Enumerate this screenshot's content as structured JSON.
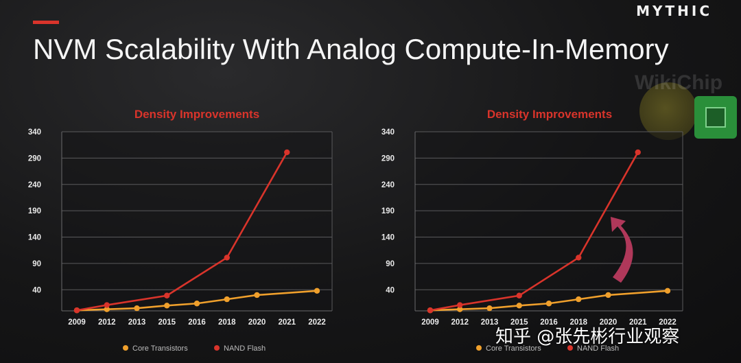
{
  "brand": "MYTHIC",
  "title": "NVM Scalability With Analog Compute-In-Memory",
  "logo_text": "WikiChip",
  "watermark": "知乎 @张先彬行业观察",
  "colors": {
    "accent": "#d9342b",
    "nand": "#d9342b",
    "core": "#f0a02c",
    "arrow": "#b0385a"
  },
  "chart_data": [
    {
      "type": "line",
      "title": "Density Improvements",
      "categories": [
        "2009",
        "2012",
        "2013",
        "2015",
        "2016",
        "2018",
        "2020",
        "2021",
        "2022"
      ],
      "yticks": [
        40,
        90,
        140,
        190,
        240,
        290,
        340
      ],
      "ylim": [
        0,
        340
      ],
      "grid": true,
      "legend": "bottom",
      "series": [
        {
          "name": "Core Transistors",
          "color": "#f0a02c",
          "values": [
            1,
            3,
            5,
            10,
            14,
            22,
            30,
            null,
            38
          ]
        },
        {
          "name": "NAND Flash",
          "color": "#d9342b",
          "values": [
            1,
            11,
            null,
            29,
            null,
            101,
            null,
            301,
            null
          ]
        }
      ]
    },
    {
      "type": "line",
      "title": "Density Improvements",
      "categories": [
        "2009",
        "2012",
        "2013",
        "2015",
        "2016",
        "2018",
        "2020",
        "2021",
        "2022"
      ],
      "yticks": [
        40,
        90,
        140,
        190,
        240,
        290,
        340
      ],
      "ylim": [
        0,
        340
      ],
      "grid": true,
      "legend": "bottom",
      "annotation": "curved-up-arrow",
      "series": [
        {
          "name": "Core Transistors",
          "color": "#f0a02c",
          "values": [
            1,
            3,
            5,
            10,
            14,
            22,
            30,
            null,
            38
          ]
        },
        {
          "name": "NAND Flash",
          "color": "#d9342b",
          "values": [
            1,
            11,
            null,
            29,
            null,
            101,
            null,
            301,
            null
          ]
        }
      ]
    }
  ]
}
